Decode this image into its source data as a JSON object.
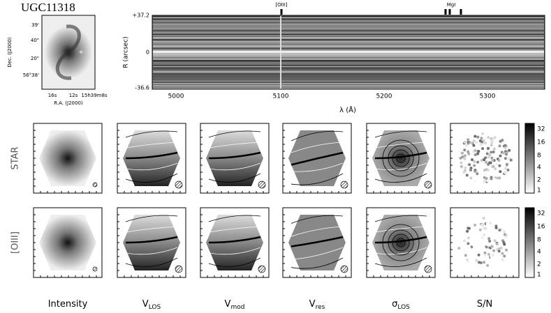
{
  "galaxy_name": "UGC11318",
  "thumbnail": {
    "y_label": "Dec. (J2000)",
    "x_label": "R.A. (J2000)",
    "y_ticks": [
      "39'",
      "40\"",
      "20\"",
      "56°38'"
    ],
    "x_ticks": [
      "16s",
      "12s",
      "15h39m8s"
    ]
  },
  "spectrum": {
    "line_markers": [
      "[OIII]",
      "MgI"
    ],
    "y_ticks": [
      "+37.2",
      "0",
      "-36.6"
    ],
    "y_label": "R (arcsec)",
    "x_ticks": [
      "5000",
      "5100",
      "5200",
      "5300"
    ],
    "x_label": "λ (Å)"
  },
  "rows": [
    "STAR",
    "[OIII]"
  ],
  "columns": [
    {
      "symbol": "Intensity",
      "subscript": ""
    },
    {
      "symbol": "V",
      "subscript": "LOS"
    },
    {
      "symbol": "V",
      "subscript": "mod"
    },
    {
      "symbol": "V",
      "subscript": "res"
    },
    {
      "symbol": "σ",
      "subscript": "LOS"
    },
    {
      "symbol": "S/N",
      "subscript": ""
    }
  ],
  "colorbar_ticks": [
    "32",
    "16",
    "8",
    "4",
    "2",
    "1"
  ]
}
